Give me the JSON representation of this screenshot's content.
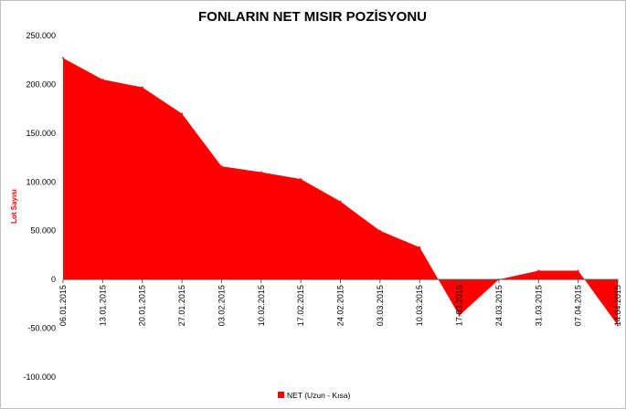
{
  "chart_data": {
    "type": "area",
    "title": "FONLARIN NET MISIR POZİSYONU",
    "xlabel": "",
    "ylabel": "Lot Sayısı",
    "ylim": [
      -100000,
      250000
    ],
    "yticks": [
      250000,
      200000,
      150000,
      100000,
      50000,
      0,
      -50000,
      -100000
    ],
    "ytick_labels": [
      "250.000",
      "200.000",
      "150.000",
      "100.000",
      "50.000",
      "0",
      "-50.000",
      "-100.000"
    ],
    "grid": false,
    "legend_position": "bottom",
    "categories": [
      "06.01.2015",
      "13.01.2015",
      "20.01.2015",
      "27.01.2015",
      "03.02.2015",
      "10.02.2015",
      "17.02.2015",
      "24.02.2015",
      "03.03.2015",
      "10.03.2015",
      "17.03.2015",
      "24.03.2015",
      "31.03.2015",
      "07.04.2015",
      "14.04.2015"
    ],
    "series": [
      {
        "name": "NET (Uzun - Kısa)",
        "color": "#ff0000",
        "values": [
          227000,
          205000,
          197000,
          170000,
          116000,
          110000,
          103000,
          80000,
          50000,
          33000,
          -37000,
          0,
          9000,
          9000,
          -47000
        ]
      }
    ]
  }
}
